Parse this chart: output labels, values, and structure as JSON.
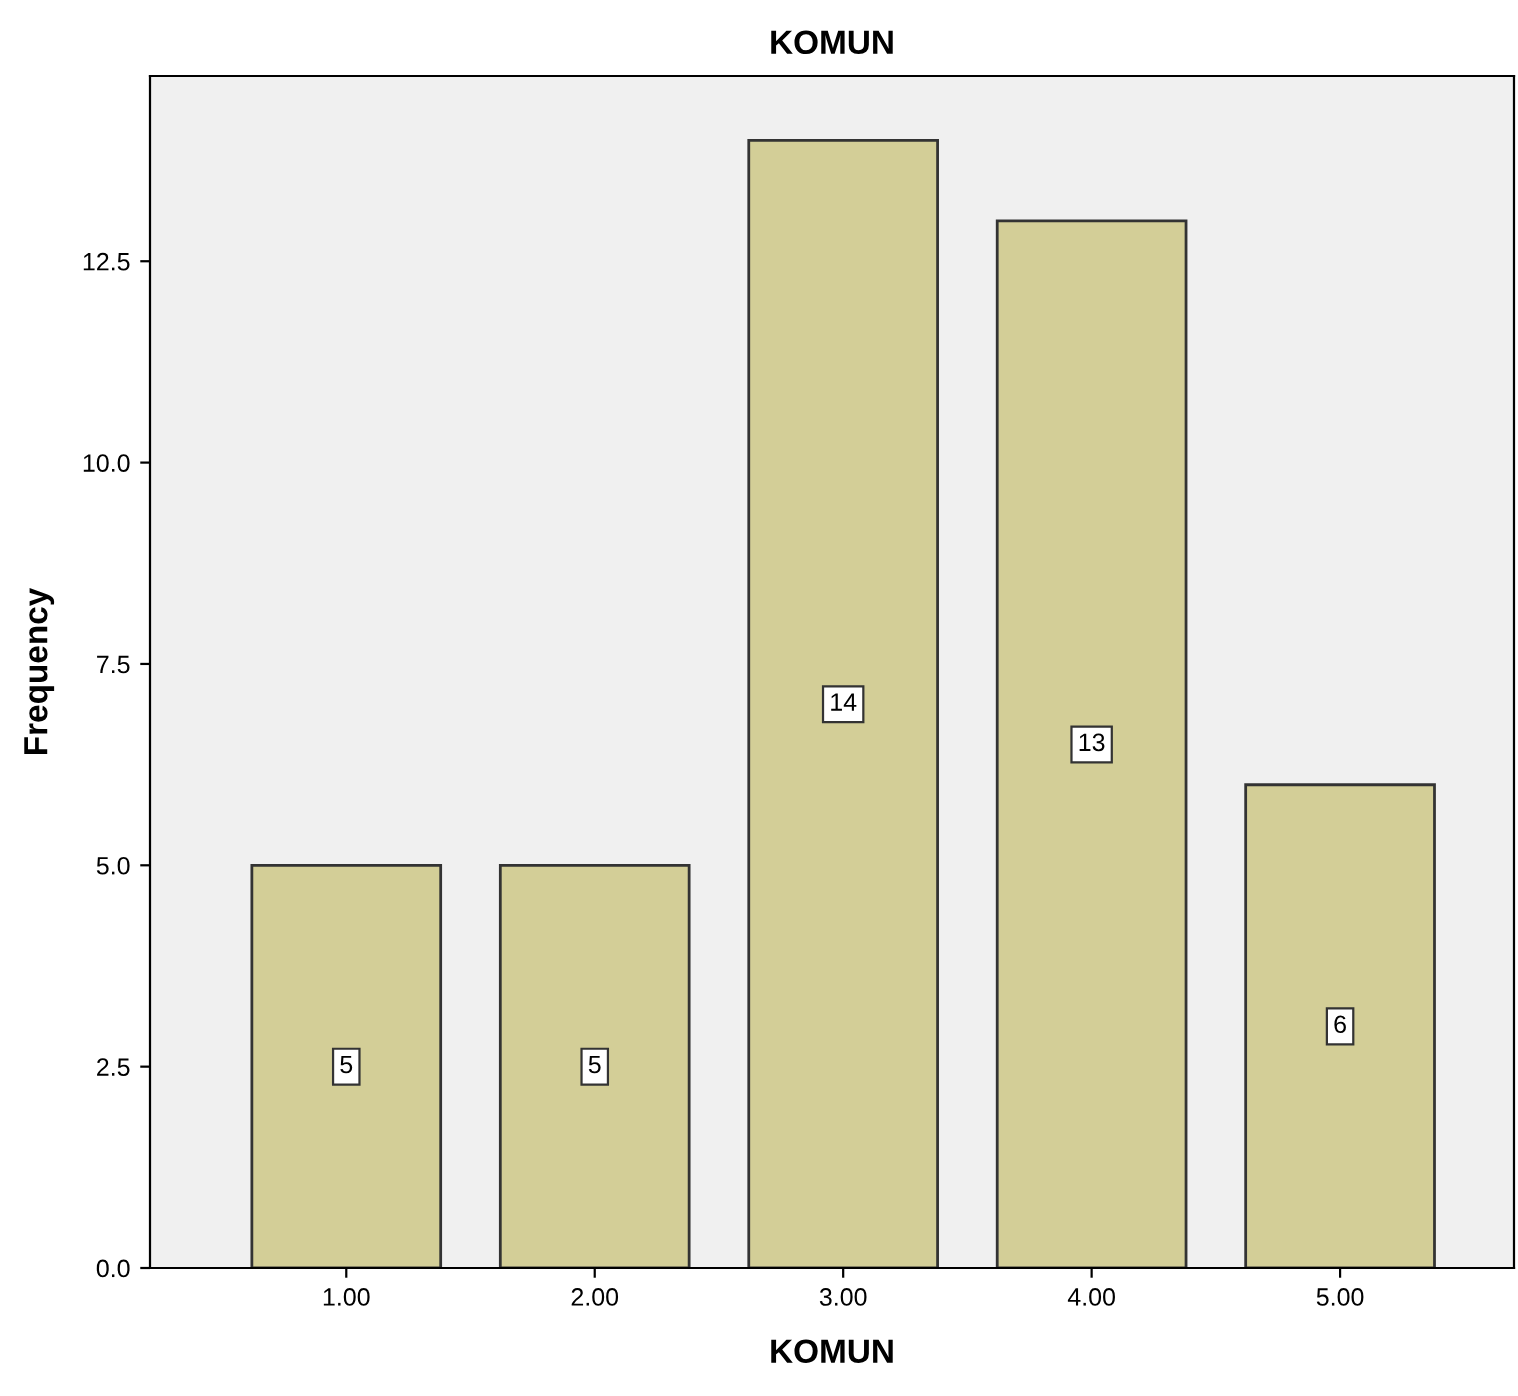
{
  "chart_data": {
    "type": "bar",
    "title": "KOMUN",
    "xlabel": "KOMUN",
    "ylabel": "Frequency",
    "categories": [
      "1.00",
      "2.00",
      "3.00",
      "4.00",
      "5.00"
    ],
    "values": [
      5,
      5,
      14,
      13,
      6
    ],
    "color": "#d3ce97",
    "ylim": [
      0,
      14.8
    ],
    "yticks": [
      {
        "value": 0,
        "label": "0.0"
      },
      {
        "value": 2.5,
        "label": "2.5"
      },
      {
        "value": 5,
        "label": "5.0"
      },
      {
        "value": 7.5,
        "label": "7.5"
      },
      {
        "value": 10,
        "label": "10.0"
      },
      {
        "value": 12.5,
        "label": "12.5"
      }
    ],
    "data_labels": true,
    "grid": false,
    "legend": false
  }
}
